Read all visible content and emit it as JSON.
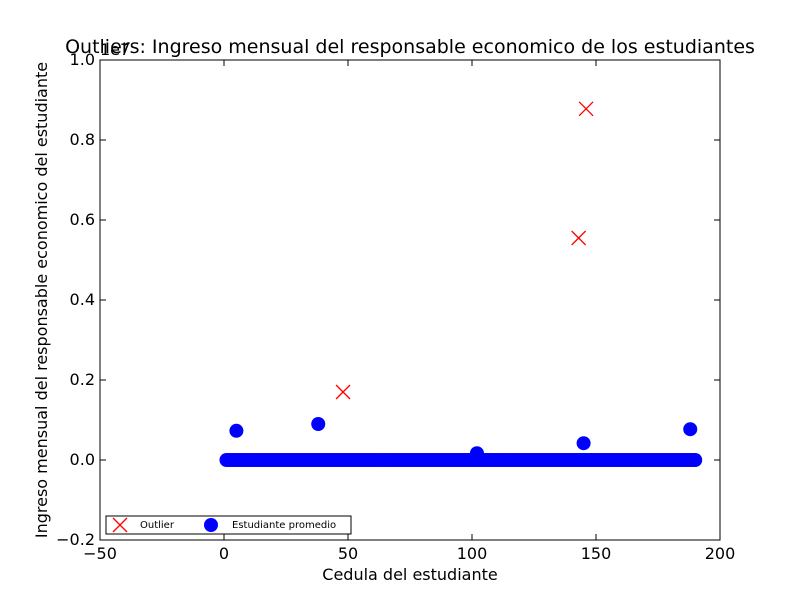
{
  "chart_data": {
    "type": "scatter",
    "title": "Outliers: Ingreso mensual del responsable economico de los estudiantes",
    "xlabel": "Cedula del estudiante",
    "ylabel": "Ingreso mensual del responsable economico del estudiante",
    "y_scale_label": "1e7",
    "xlim": [
      -50,
      200
    ],
    "ylim": [
      -0.2,
      1.0
    ],
    "x_ticks": [
      -50,
      0,
      50,
      100,
      150,
      200
    ],
    "x_tick_labels": [
      "−50",
      "0",
      "50",
      "100",
      "150",
      "200"
    ],
    "y_ticks": [
      -0.2,
      0.0,
      0.2,
      0.4,
      0.6,
      0.8,
      1.0
    ],
    "y_tick_labels": [
      "−0.2",
      "0.0",
      "0.2",
      "0.4",
      "0.6",
      "0.8",
      "1.0"
    ],
    "grid": false,
    "legend_position": "lower-left",
    "series": [
      {
        "name": "Outlier",
        "marker": "x",
        "color": "#ff0000",
        "x": [
          48,
          143,
          146
        ],
        "y": [
          0.17,
          0.555,
          0.878
        ]
      },
      {
        "name": "Estudiante promedio",
        "marker": "circle",
        "color": "#0000ff",
        "x": [
          5,
          38,
          102,
          145,
          188
        ],
        "y": [
          0.073,
          0.09,
          0.017,
          0.042,
          0.077
        ],
        "baseline_x_range": [
          1,
          190
        ],
        "baseline_y": 0.0
      }
    ]
  }
}
